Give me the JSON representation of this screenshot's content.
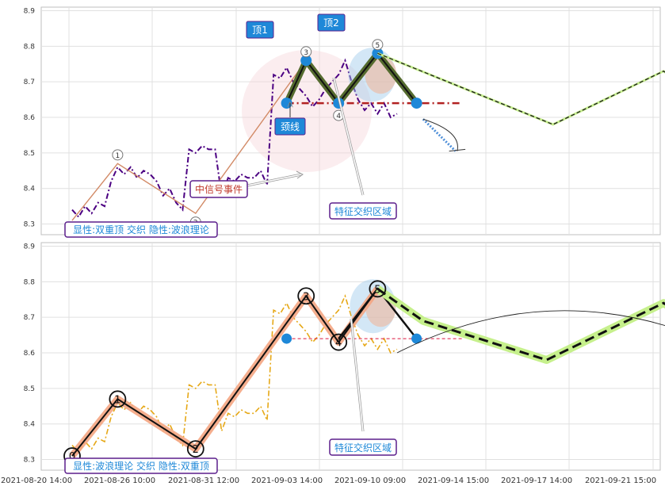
{
  "chart_data": {
    "type": "line",
    "x_ticks": [
      "2021-08-20 14:00",
      "2021-08-26 10:00",
      "2021-08-31 12:00",
      "2021-09-03 14:00",
      "2021-09-10 09:00",
      "2021-09-14 15:00",
      "2021-09-17 14:00",
      "2021-09-21 15:00"
    ],
    "y_ticks": [
      "8.3",
      "8.4",
      "8.5",
      "8.6",
      "8.7",
      "8.8",
      "8.9"
    ],
    "ylim": [
      8.27,
      8.91
    ],
    "grid": true,
    "colors": {
      "price_top": "#4b0082",
      "price_bottom": "#e6a817",
      "wave": "#000000",
      "wave_glow": "#f4a582",
      "pattern_fill": "#556b2f",
      "neckline_top": "#b22222",
      "neckline_bottom": "#dc143c",
      "pivot_marker": "#1e88d8",
      "projection_top": "#4d7a00",
      "projection_bottom_glow": "#c6f08c",
      "event_label_text": "#c0392b",
      "callout_text": "#1e88d8",
      "callout_border": "#5b1f8c"
    },
    "price_series": [
      8.34,
      8.32,
      8.35,
      8.33,
      8.36,
      8.35,
      8.42,
      8.46,
      8.44,
      8.46,
      8.43,
      8.45,
      8.44,
      8.42,
      8.38,
      8.4,
      8.36,
      8.34,
      8.51,
      8.5,
      8.52,
      8.51,
      8.51,
      8.38,
      8.43,
      8.42,
      8.44,
      8.43,
      8.43,
      8.45,
      8.41,
      8.72,
      8.71,
      8.74,
      8.7,
      8.68,
      8.66,
      8.63,
      8.65,
      8.68,
      8.7,
      8.72,
      8.76,
      8.7,
      8.65,
      8.62,
      8.64,
      8.61,
      8.64,
      8.6,
      8.61
    ],
    "wave_points": [
      {
        "label": "0",
        "x": 0,
        "y": 8.31
      },
      {
        "label": "1",
        "x": 7,
        "y": 8.47
      },
      {
        "label": "2",
        "x": 19,
        "y": 8.33
      },
      {
        "label": "3",
        "x": 36,
        "y": 8.76
      },
      {
        "label": "4",
        "x": 41,
        "y": 8.63
      },
      {
        "label": "5",
        "x": 47,
        "y": 8.78
      }
    ],
    "double_top": [
      {
        "x": 33,
        "y": 8.64
      },
      {
        "x": 36,
        "y": 8.76
      },
      {
        "x": 41,
        "y": 8.64
      },
      {
        "x": 47,
        "y": 8.78
      },
      {
        "x": 53,
        "y": 8.64
      }
    ],
    "neckline": {
      "y": 8.64,
      "x_start": 33,
      "x_end": 60
    },
    "projection_top": [
      {
        "x": 47,
        "y": 8.78
      },
      {
        "x": 74,
        "y": 8.58
      },
      {
        "x": 91,
        "y": 8.73
      },
      {
        "x": 106,
        "y": 8.54
      }
    ],
    "projection_bottom": [
      {
        "x": 47,
        "y": 8.78
      },
      {
        "x": 54,
        "y": 8.69
      },
      {
        "x": 73,
        "y": 8.58
      },
      {
        "x": 91,
        "y": 8.74
      },
      {
        "x": 108,
        "y": 8.54
      }
    ],
    "labels": {
      "top1": "顶1",
      "top2": "顶2",
      "neckline": "颈线",
      "mid_signal": "中信号事件",
      "feature_zone": "特征交织区域",
      "top_panel_caption": "显性:双重顶 交织 隐性:波浪理论",
      "bottom_panel_caption": "显性:波浪理论 交织 隐性:双重顶"
    }
  }
}
